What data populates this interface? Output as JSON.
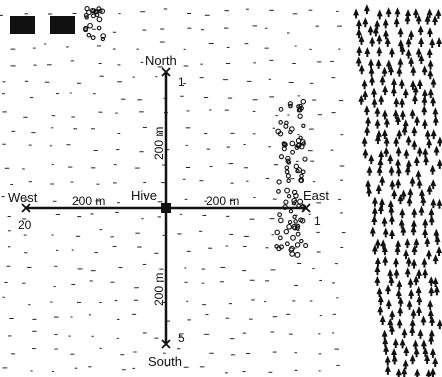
{
  "labels": {
    "north": "North",
    "south": "South",
    "east": "East",
    "west": "West",
    "hive": "Hive"
  },
  "distances": {
    "west_arm": "200 m",
    "east_arm": "200 m",
    "north_arm": "200 m",
    "south_arm": "200 m"
  },
  "site_numbers": {
    "north": "1",
    "east": "1",
    "south": "5",
    "west": "20"
  },
  "legend_blocks": 2,
  "ink": "#111111"
}
